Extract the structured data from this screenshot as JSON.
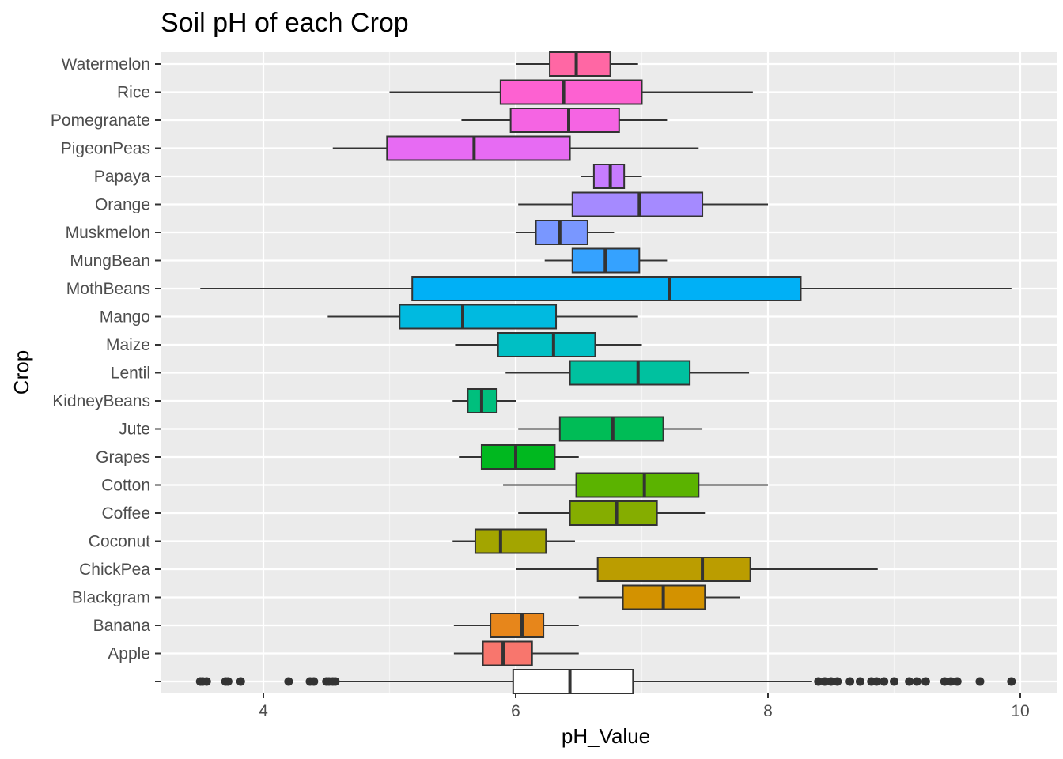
{
  "chart_data": {
    "type": "boxplot",
    "orientation": "horizontal",
    "title": "Soil pH of each Crop",
    "xlabel": "pH_Value",
    "ylabel": "Crop",
    "xlim": [
      3.3,
      10.2
    ],
    "x_ticks": [
      4,
      6,
      8,
      10
    ],
    "grid": true,
    "legend": "none",
    "boxes": [
      {
        "name": "",
        "min": 4.6,
        "q1": 5.98,
        "median": 6.43,
        "q3": 6.93,
        "max": 8.35,
        "fill": "#ffffff",
        "outliers": [
          3.5,
          3.52,
          3.55,
          3.7,
          3.72,
          3.82,
          4.2,
          4.37,
          4.4,
          4.5,
          4.52,
          4.55,
          4.57,
          8.4,
          8.45,
          8.5,
          8.55,
          8.65,
          8.73,
          8.82,
          8.86,
          8.92,
          9.0,
          9.12,
          9.18,
          9.25,
          9.4,
          9.45,
          9.5,
          9.68,
          9.93
        ]
      },
      {
        "name": "Apple",
        "min": 5.51,
        "q1": 5.74,
        "median": 5.9,
        "q3": 6.13,
        "max": 6.5,
        "fill": "#F8766D",
        "outliers": []
      },
      {
        "name": "Banana",
        "min": 5.51,
        "q1": 5.8,
        "median": 6.05,
        "q3": 6.22,
        "max": 6.5,
        "fill": "#E7861B",
        "outliers": []
      },
      {
        "name": "Blackgram",
        "min": 6.5,
        "q1": 6.85,
        "median": 7.17,
        "q3": 7.5,
        "max": 7.78,
        "fill": "#D39200",
        "outliers": []
      },
      {
        "name": "ChickPea",
        "min": 6.0,
        "q1": 6.65,
        "median": 7.48,
        "q3": 7.86,
        "max": 8.87,
        "fill": "#BB9D00",
        "outliers": []
      },
      {
        "name": "Coconut",
        "min": 5.5,
        "q1": 5.68,
        "median": 5.88,
        "q3": 6.24,
        "max": 6.47,
        "fill": "#A3A500",
        "outliers": []
      },
      {
        "name": "Coffee",
        "min": 6.02,
        "q1": 6.43,
        "median": 6.8,
        "q3": 7.12,
        "max": 7.5,
        "fill": "#85AD00",
        "outliers": []
      },
      {
        "name": "Cotton",
        "min": 5.9,
        "q1": 6.48,
        "median": 7.02,
        "q3": 7.45,
        "max": 8.0,
        "fill": "#5BB300",
        "outliers": []
      },
      {
        "name": "Grapes",
        "min": 5.55,
        "q1": 5.73,
        "median": 6.0,
        "q3": 6.31,
        "max": 6.5,
        "fill": "#00B81F",
        "outliers": []
      },
      {
        "name": "Jute",
        "min": 6.02,
        "q1": 6.35,
        "median": 6.77,
        "q3": 7.17,
        "max": 7.48,
        "fill": "#00BC56",
        "outliers": []
      },
      {
        "name": "KidneyBeans",
        "min": 5.5,
        "q1": 5.62,
        "median": 5.73,
        "q3": 5.85,
        "max": 6.0,
        "fill": "#00BF7D",
        "outliers": []
      },
      {
        "name": "Lentil",
        "min": 5.92,
        "q1": 6.43,
        "median": 6.97,
        "q3": 7.38,
        "max": 7.85,
        "fill": "#00C19F",
        "outliers": []
      },
      {
        "name": "Maize",
        "min": 5.52,
        "q1": 5.86,
        "median": 6.3,
        "q3": 6.63,
        "max": 7.0,
        "fill": "#00BFC4",
        "outliers": []
      },
      {
        "name": "Mango",
        "min": 4.51,
        "q1": 5.08,
        "median": 5.58,
        "q3": 6.32,
        "max": 6.97,
        "fill": "#00BAE0",
        "outliers": []
      },
      {
        "name": "MothBeans",
        "min": 3.5,
        "q1": 5.18,
        "median": 7.22,
        "q3": 8.26,
        "max": 9.93,
        "fill": "#00B0F6",
        "outliers": []
      },
      {
        "name": "MungBean",
        "min": 6.23,
        "q1": 6.45,
        "median": 6.71,
        "q3": 6.98,
        "max": 7.2,
        "fill": "#35A2FF",
        "outliers": []
      },
      {
        "name": "Muskmelon",
        "min": 6.0,
        "q1": 6.16,
        "median": 6.35,
        "q3": 6.57,
        "max": 6.78,
        "fill": "#7997FF",
        "outliers": []
      },
      {
        "name": "Orange",
        "min": 6.02,
        "q1": 6.45,
        "median": 6.98,
        "q3": 7.48,
        "max": 8.0,
        "fill": "#A58AFF",
        "outliers": []
      },
      {
        "name": "Papaya",
        "min": 6.52,
        "q1": 6.62,
        "median": 6.75,
        "q3": 6.86,
        "max": 7.0,
        "fill": "#C77CFF",
        "outliers": []
      },
      {
        "name": "PigeonPeas",
        "min": 4.55,
        "q1": 4.98,
        "median": 5.67,
        "q3": 6.43,
        "max": 7.45,
        "fill": "#E76BF3",
        "outliers": []
      },
      {
        "name": "Pomegranate",
        "min": 5.57,
        "q1": 5.96,
        "median": 6.42,
        "q3": 6.82,
        "max": 7.2,
        "fill": "#F564E3",
        "outliers": []
      },
      {
        "name": "Rice",
        "min": 5.0,
        "q1": 5.88,
        "median": 6.38,
        "q3": 7.0,
        "max": 7.88,
        "fill": "#FD61D1",
        "outliers": []
      },
      {
        "name": "Watermelon",
        "min": 6.0,
        "q1": 6.27,
        "median": 6.48,
        "q3": 6.75,
        "max": 6.97,
        "fill": "#FF67A4",
        "outliers": []
      }
    ]
  }
}
